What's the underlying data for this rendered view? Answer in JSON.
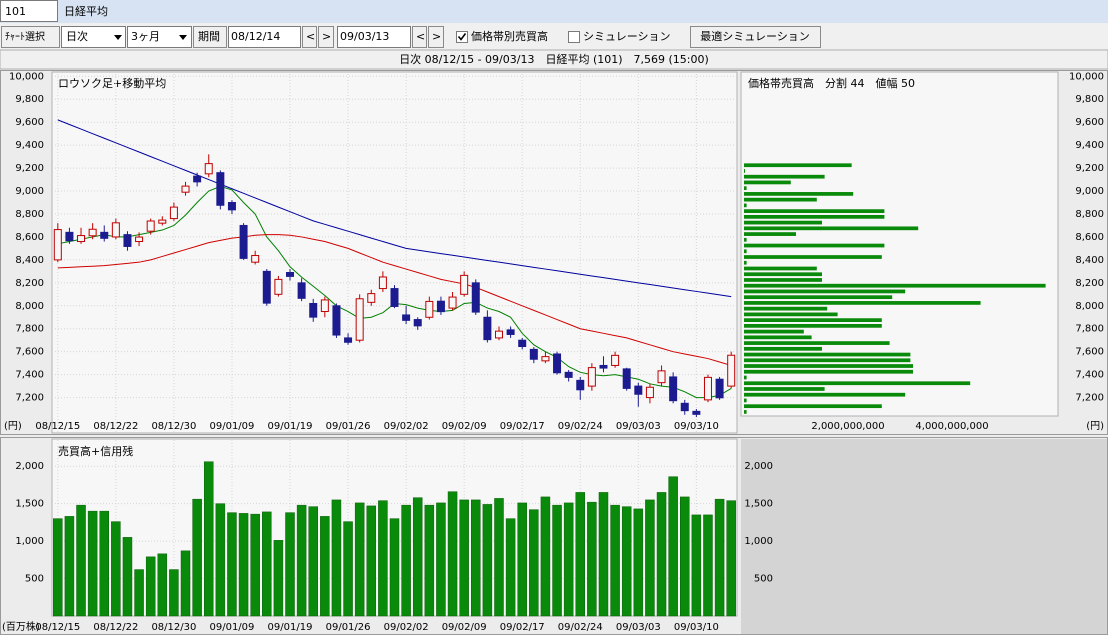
{
  "header": {
    "code": "101",
    "name": "日経平均"
  },
  "toolbar": {
    "chart_select": "ﾁｬｰﾄ選択",
    "interval": "日次",
    "range": "3ヶ月",
    "period_label": "期間",
    "start": "08/12/14",
    "end": "09/03/13",
    "prev": "<",
    "next": ">",
    "price_volume": {
      "label": "価格帯別売買高",
      "checked": true
    },
    "simulation": {
      "label": "シミュレーション",
      "checked": false
    },
    "optimal": "最適シミュレーション"
  },
  "info": "日次 08/12/15 - 09/03/13　日経平均 (101)　7,569 (15:00)",
  "chart_data": [
    {
      "type": "candlestick",
      "title": "ロウソク足+移動平均",
      "y_unit": "(円)",
      "categories": [
        "08/12/15",
        null,
        null,
        null,
        null,
        "08/12/22",
        null,
        null,
        null,
        null,
        "08/12/30",
        null,
        null,
        null,
        null,
        "09/01/09",
        null,
        null,
        null,
        null,
        "09/01/19",
        null,
        null,
        null,
        null,
        "09/01/26",
        null,
        null,
        null,
        null,
        "09/02/02",
        null,
        null,
        null,
        null,
        "09/02/09",
        null,
        null,
        null,
        null,
        "09/02/17",
        null,
        null,
        null,
        null,
        "09/02/24",
        null,
        null,
        null,
        null,
        "09/03/03",
        null,
        null,
        null,
        null,
        "09/03/10",
        null,
        null,
        null
      ],
      "open": [
        8400,
        8640,
        8560,
        8610,
        8640,
        8600,
        8620,
        8560,
        8650,
        8720,
        8760,
        8990,
        9130,
        9150,
        9160,
        8900,
        8700,
        8380,
        8300,
        8100,
        8290,
        8200,
        8020,
        7950,
        8000,
        7720,
        7700,
        8030,
        8150,
        8150,
        7920,
        7880,
        7900,
        8040,
        7980,
        8100,
        8200,
        7900,
        7720,
        7790,
        7700,
        7620,
        7520,
        7580,
        7420,
        7350,
        7300,
        7480,
        7480,
        7450,
        7300,
        7200,
        7330,
        7380,
        7150,
        7080,
        7180,
        7360,
        7300
      ],
      "high": [
        8720,
        8680,
        8680,
        8720,
        8700,
        8760,
        8650,
        8640,
        8760,
        8780,
        8900,
        9080,
        9160,
        9320,
        9180,
        8920,
        8720,
        8480,
        8320,
        8260,
        8320,
        8240,
        8060,
        8080,
        8020,
        7760,
        8100,
        8140,
        8300,
        8180,
        8000,
        7900,
        8080,
        8080,
        8120,
        8300,
        8230,
        7960,
        7820,
        7820,
        7720,
        7640,
        7600,
        7600,
        7440,
        7380,
        7500,
        7560,
        7600,
        7460,
        7330,
        7320,
        7480,
        7420,
        7180,
        7100,
        7400,
        7380,
        7600
      ],
      "low": [
        8380,
        8540,
        8540,
        8580,
        8560,
        8580,
        8480,
        8520,
        8620,
        8700,
        8740,
        8960,
        9040,
        9120,
        8840,
        8800,
        8400,
        8360,
        8000,
        8080,
        8220,
        8040,
        7860,
        7900,
        7720,
        7660,
        7680,
        8000,
        8120,
        7980,
        7840,
        7790,
        7880,
        7920,
        7960,
        8080,
        7920,
        7680,
        7700,
        7720,
        7620,
        7500,
        7500,
        7400,
        7340,
        7180,
        7260,
        7420,
        7460,
        7260,
        7120,
        7150,
        7300,
        7150,
        7050,
        7030,
        7160,
        7180,
        7280
      ],
      "close": [
        8664,
        8567,
        8612,
        8667,
        8588,
        8723,
        8517,
        8599,
        8739,
        8747,
        8860,
        9043,
        9080,
        9239,
        8876,
        8836,
        8413,
        8438,
        8023,
        8230,
        8256,
        8065,
        7901,
        8051,
        7745,
        7682,
        8061,
        8106,
        8251,
        7994,
        7873,
        7825,
        8038,
        7949,
        8076,
        8265,
        7945,
        7705,
        7779,
        7750,
        7645,
        7534,
        7557,
        7416,
        7376,
        7268,
        7461,
        7457,
        7568,
        7280,
        7229,
        7290,
        7433,
        7173,
        7086,
        7054,
        7376,
        7198,
        7569
      ],
      "up_color": "#c00000",
      "down_color": "#1c1c90",
      "moving_averages": [
        {
          "color": "#008000",
          "values": [
            8540,
            8560,
            8580,
            8600,
            8620,
            8600,
            8600,
            8620,
            8640,
            8660,
            8700,
            8790,
            8900,
            9000,
            9040,
            9010,
            8900,
            8800,
            8600,
            8480,
            8340,
            8250,
            8170,
            8090,
            8000,
            7950,
            7890,
            7900,
            7940,
            8020,
            8010,
            7980,
            7960,
            7950,
            7960,
            8020,
            8030,
            7980,
            7950,
            7900,
            7760,
            7660,
            7600,
            7550,
            7470,
            7420,
            7400,
            7390,
            7400,
            7380,
            7360,
            7320,
            7300,
            7290,
            7250,
            7200,
            7200,
            7220,
            7280
          ]
        },
        {
          "color": "#d00000",
          "values": [
            8330,
            8335,
            8340,
            8345,
            8350,
            8360,
            8370,
            8380,
            8400,
            8430,
            8460,
            8490,
            8520,
            8550,
            8570,
            8590,
            8600,
            8615,
            8620,
            8620,
            8615,
            8600,
            8580,
            8560,
            8530,
            8500,
            8460,
            8420,
            8380,
            8350,
            8320,
            8290,
            8260,
            8230,
            8210,
            8190,
            8160,
            8120,
            8080,
            8040,
            8000,
            7960,
            7920,
            7880,
            7840,
            7800,
            7780,
            7760,
            7740,
            7720,
            7690,
            7660,
            7630,
            7600,
            7580,
            7560,
            7540,
            7510,
            7480
          ]
        },
        {
          "color": "#0000a0",
          "values": [
            9620,
            9580,
            9540,
            9500,
            9460,
            9420,
            9380,
            9340,
            9300,
            9260,
            9220,
            9180,
            9140,
            9100,
            9060,
            9020,
            8980,
            8940,
            8900,
            8860,
            8820,
            8780,
            8740,
            8710,
            8680,
            8650,
            8620,
            8590,
            8560,
            8530,
            8500,
            8485,
            8470,
            8455,
            8440,
            8425,
            8410,
            8395,
            8380,
            8365,
            8350,
            8335,
            8320,
            8305,
            8290,
            8275,
            8260,
            8245,
            8230,
            8215,
            8200,
            8185,
            8170,
            8155,
            8140,
            8125,
            8110,
            8095,
            8080
          ]
        }
      ],
      "ylim": [
        6900,
        10020
      ],
      "yticks": [
        {
          "value": 7200,
          "label": "7,200"
        },
        {
          "value": 7400,
          "label": "7,400"
        },
        {
          "value": 7600,
          "label": "7,600"
        },
        {
          "value": 7800,
          "label": "7,800"
        },
        {
          "value": 8000,
          "label": "8,000"
        },
        {
          "value": 8200,
          "label": "8,200"
        },
        {
          "value": 8400,
          "label": "8,400"
        },
        {
          "value": 8600,
          "label": "8,600"
        },
        {
          "value": 8800,
          "label": "8,800"
        },
        {
          "value": 9000,
          "label": "9,000"
        },
        {
          "value": 9200,
          "label": "9,200"
        },
        {
          "value": 9400,
          "label": "9,400"
        },
        {
          "value": 9600,
          "label": "9,600"
        },
        {
          "value": 9800,
          "label": "9,800"
        },
        {
          "value": 10000,
          "label": "10,000"
        }
      ],
      "grid": true
    },
    {
      "type": "histogram",
      "orientation": "horizontal",
      "title": "価格帯売買高　分割 44　値幅 50",
      "y_unit": "(円)",
      "color": "#0a8a0a",
      "bins": [
        7050,
        7100,
        7150,
        7200,
        7250,
        7300,
        7350,
        7400,
        7450,
        7500,
        7550,
        7600,
        7650,
        7700,
        7750,
        7800,
        7850,
        7900,
        7950,
        8000,
        8050,
        8100,
        8150,
        8200,
        8250,
        8300,
        8350,
        8400,
        8450,
        8500,
        8550,
        8600,
        8650,
        8700,
        8750,
        8800,
        8850,
        8900,
        8950,
        9000,
        9050,
        9100,
        9150,
        9200,
        9250
      ],
      "values": [
        50000000,
        2650000000,
        50000000,
        3100000000,
        1550000000,
        4350000000,
        50000000,
        3250000000,
        3250000000,
        3200000000,
        3200000000,
        1500000000,
        2800000000,
        1300000000,
        1150000000,
        2650000000,
        2650000000,
        1800000000,
        1600000000,
        4550000000,
        2850000000,
        3100000000,
        5800000000,
        1500000000,
        1500000000,
        1400000000,
        50000000,
        2650000000,
        50000000,
        2700000000,
        50000000,
        1000000000,
        3350000000,
        1500000000,
        2700000000,
        2700000000,
        50000000,
        1400000000,
        2100000000,
        50000000,
        900000000,
        1550000000,
        20000000,
        2070000000
      ],
      "xlim": [
        0,
        6000000000
      ],
      "xticks": [
        {
          "value": 2000000000,
          "label": "2,000,000,000"
        },
        {
          "value": 4000000000,
          "label": "4,000,000,000"
        }
      ],
      "ylim": [
        6900,
        10020
      ],
      "yticks": [
        {
          "value": 7200,
          "label": "7,200"
        },
        {
          "value": 7400,
          "label": "7,400"
        },
        {
          "value": 7600,
          "label": "7,600"
        },
        {
          "value": 7800,
          "label": "7,800"
        },
        {
          "value": 8000,
          "label": "8,000"
        },
        {
          "value": 8200,
          "label": "8,200"
        },
        {
          "value": 8400,
          "label": "8,400"
        },
        {
          "value": 8600,
          "label": "8,600"
        },
        {
          "value": 8800,
          "label": "8,800"
        },
        {
          "value": 9000,
          "label": "9,000"
        },
        {
          "value": 9200,
          "label": "9,200"
        },
        {
          "value": 9400,
          "label": "9,400"
        },
        {
          "value": 9600,
          "label": "9,600"
        },
        {
          "value": 9800,
          "label": "9,800"
        },
        {
          "value": 10000,
          "label": "10,000"
        }
      ]
    },
    {
      "type": "bar",
      "title": "売買高+信用残",
      "y_unit": "(百万株)",
      "color": "#0a8a0a",
      "categories": [
        "08/12/15",
        null,
        null,
        null,
        null,
        "08/12/22",
        null,
        null,
        null,
        null,
        "08/12/30",
        null,
        null,
        null,
        null,
        "09/01/09",
        null,
        null,
        null,
        null,
        "09/01/19",
        null,
        null,
        null,
        null,
        "09/01/26",
        null,
        null,
        null,
        null,
        "09/02/02",
        null,
        null,
        null,
        null,
        "09/02/09",
        null,
        null,
        null,
        null,
        "09/02/17",
        null,
        null,
        null,
        null,
        "09/02/24",
        null,
        null,
        null,
        null,
        "09/03/03",
        null,
        null,
        null,
        null,
        "09/03/10",
        null,
        null,
        null
      ],
      "values": [
        1300,
        1330,
        1480,
        1400,
        1400,
        1260,
        1050,
        620,
        790,
        830,
        620,
        870,
        1560,
        2060,
        1500,
        1380,
        1370,
        1360,
        1390,
        1010,
        1380,
        1480,
        1460,
        1330,
        1550,
        1260,
        1510,
        1470,
        1540,
        1300,
        1480,
        1580,
        1480,
        1510,
        1660,
        1550,
        1550,
        1490,
        1570,
        1300,
        1510,
        1420,
        1590,
        1480,
        1510,
        1650,
        1520,
        1650,
        1480,
        1460,
        1430,
        1550,
        1650,
        1860,
        1590,
        1350,
        1350,
        1560,
        1540
      ],
      "ylim": [
        0,
        2350
      ],
      "yticks": [
        500,
        {
          "value": 1000,
          "label": "1,000"
        },
        {
          "value": 1500,
          "label": "1,500"
        },
        {
          "value": 2000,
          "label": "2,000"
        }
      ],
      "grid": true
    }
  ]
}
